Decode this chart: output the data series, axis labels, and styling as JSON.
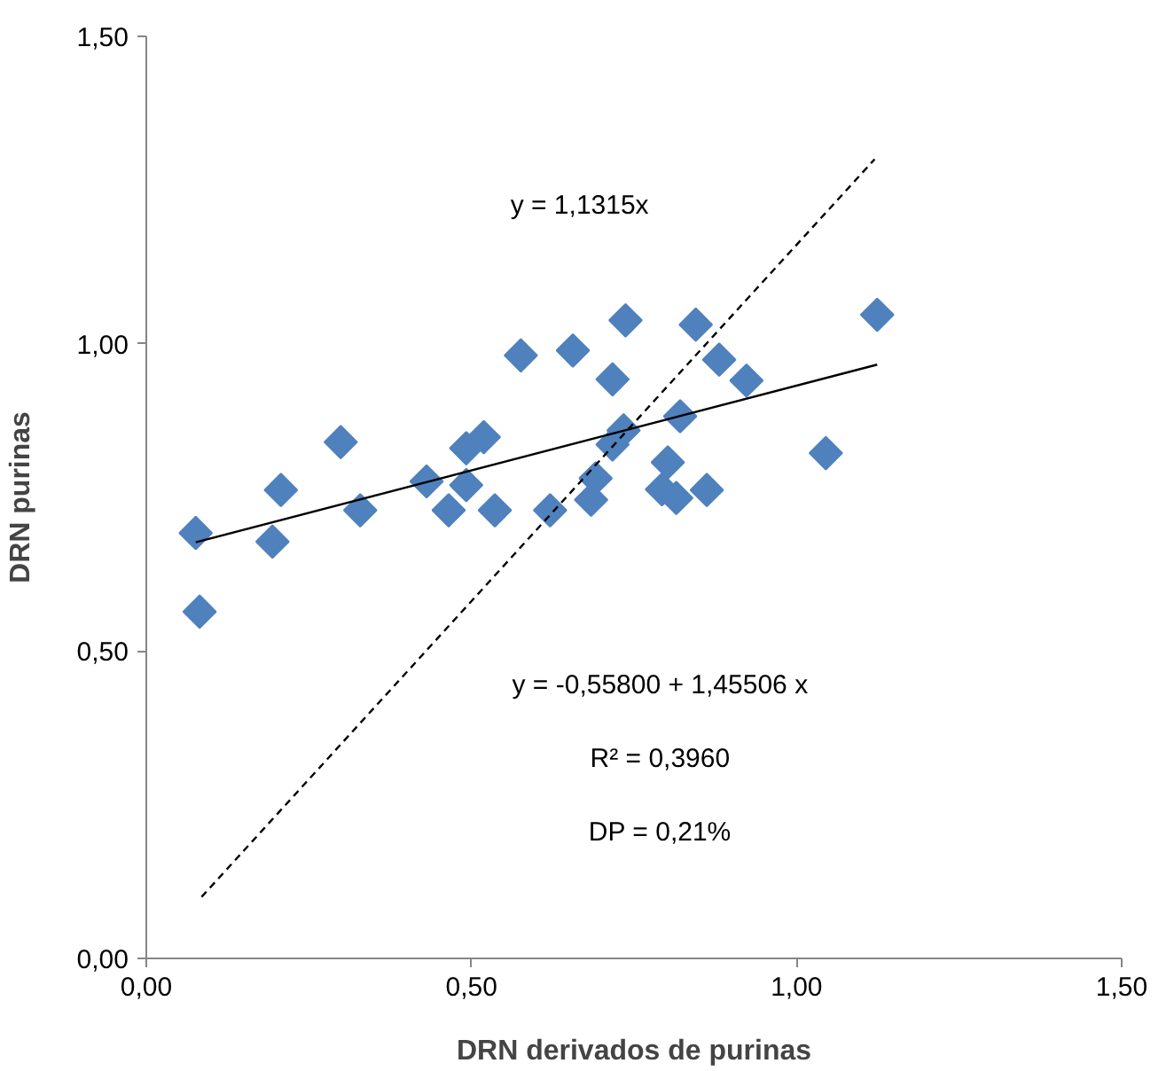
{
  "chart_data": {
    "type": "scatter",
    "xlabel": "DRN derivados de purinas",
    "ylabel": "DRN purinas",
    "marker": "diamond",
    "grid": false,
    "xlim": [
      0,
      1.5
    ],
    "ylim": [
      0,
      1.5
    ],
    "xticks": [
      {
        "value": 0,
        "label": "0,00"
      },
      {
        "value": 0.5,
        "label": "0,50"
      },
      {
        "value": 1,
        "label": "1,00"
      },
      {
        "value": 1.5,
        "label": "1,50"
      }
    ],
    "yticks": [
      {
        "value": 0,
        "label": "0,00"
      },
      {
        "value": 0.5,
        "label": "0,50"
      },
      {
        "value": 1,
        "label": "1,00"
      },
      {
        "value": 1.5,
        "label": "1,50"
      }
    ],
    "annotations": [
      "y = 1,1315x",
      "y = -0,55800 + 1,45506 x",
      "R² = 0,3960",
      "DP = 0,21%"
    ],
    "series": [
      {
        "color": "#4f81bd",
        "x": [
          0.076,
          0.082,
          0.194,
          0.207,
          0.299,
          0.329,
          0.431,
          0.465,
          0.492,
          0.492,
          0.519,
          0.536,
          0.576,
          0.621,
          0.656,
          0.684,
          0.691,
          0.717,
          0.717,
          0.734,
          0.737,
          0.845,
          0.881,
          0.923,
          0.821,
          0.802,
          0.793,
          0.815,
          0.862,
          1.045,
          1.124
        ],
        "values": [
          0.692,
          0.564,
          0.678,
          0.762,
          0.84,
          0.729,
          0.776,
          0.729,
          0.77,
          0.83,
          0.848,
          0.729,
          0.981,
          0.729,
          0.989,
          0.746,
          0.781,
          0.942,
          0.836,
          0.859,
          1.038,
          1.031,
          0.974,
          0.94,
          0.882,
          0.807,
          0.763,
          0.749,
          0.762,
          0.822,
          1.047
        ]
      },
      {
        "type": "line",
        "color": "#000000",
        "line_style": "solid",
        "marker": "none",
        "x": [
          0.076,
          1.124
        ],
        "values": [
          0.677,
          0.966
        ]
      },
      {
        "type": "line",
        "color": "#000000",
        "line_style": "dashed",
        "marker": "none",
        "x": [
          0.085,
          1.12
        ],
        "values": [
          0.1,
          1.3
        ]
      }
    ]
  }
}
